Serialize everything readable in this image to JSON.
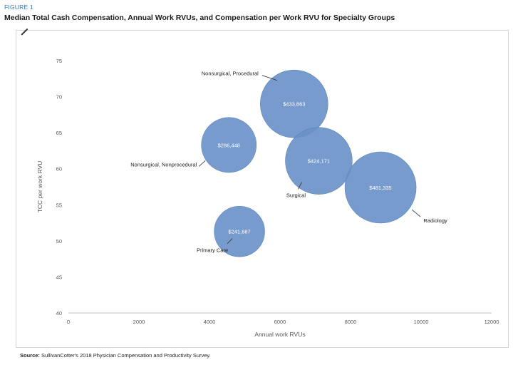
{
  "figure_label": "FIGURE 1",
  "title": "Median Total Cash Compensation, Annual Work RVUs, and Compensation per Work RVU for Specialty Groups",
  "source_label": "Source:",
  "source_text": "SullivanCotter's 2018 Physician Compensation and Productivity Survey.",
  "chart_data": {
    "type": "scatter",
    "subtype": "bubble",
    "title": "Median Total Cash Compensation, Annual Work RVUs, and Compensation per Work RVU for Specialty Groups",
    "xlabel": "Annual work RVUs",
    "ylabel": "TCC per work RVU",
    "xlim": [
      0,
      12000
    ],
    "ylim": [
      40,
      75
    ],
    "xticks": [
      0,
      2000,
      4000,
      6000,
      8000,
      10000,
      12000
    ],
    "yticks": [
      40,
      45,
      50,
      55,
      60,
      65,
      70,
      75
    ],
    "grid": false,
    "bubble_color": "#6a93c8",
    "series": [
      {
        "name": "Nonsurgical, Procedural",
        "x": 6400,
        "y": 69,
        "size_label": "$433,863",
        "size": 433863
      },
      {
        "name": "Nonsurgical, Nonprocedural",
        "x": 4550,
        "y": 63.3,
        "size_label": "$286,448",
        "size": 286448
      },
      {
        "name": "Surgical",
        "x": 7100,
        "y": 61.1,
        "size_label": "$424,171",
        "size": 424171
      },
      {
        "name": "Radiology",
        "x": 8850,
        "y": 57.4,
        "size_label": "$481,335",
        "size": 481335
      },
      {
        "name": "Primary Care",
        "x": 4850,
        "y": 51.3,
        "size_label": "$241,687",
        "size": 241687
      }
    ]
  }
}
